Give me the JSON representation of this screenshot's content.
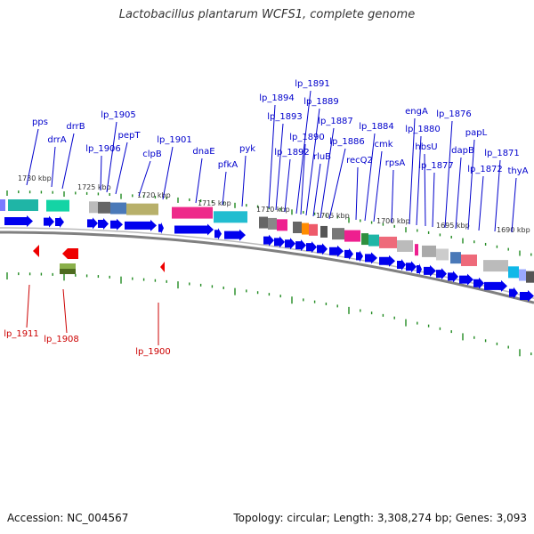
{
  "title": "Lactobacillus plantarum WCFS1, complete genome",
  "footer": {
    "accession": "Accession: NC_004567",
    "topology": "Topology: circular; Length: 3,308,274 bp; Genes: 3,093"
  },
  "colors": {
    "forward_gene": "#0000ee",
    "reverse_gene": "#ee0000",
    "forward_label": "#0000cc",
    "reverse_label": "#cc0000",
    "tick": "#228b22",
    "backbone": "#808080"
  },
  "scale_labels": [
    "1730 kbp",
    "1725 kbp",
    "1720 kbp",
    "1715 kbp",
    "1710 kbp",
    "1705 kbp",
    "1700 kbp",
    "1695 kbp",
    "1690 kbp"
  ],
  "forward_genes": [
    "pps",
    "drrA",
    "drrB",
    "lp_1906",
    "lp_1905",
    "pepT",
    "clpB",
    "lp_1901",
    "dnaE",
    "pfkA",
    "pyk",
    "lp_1894",
    "lp_1893",
    "lp_1892",
    "lp_1891",
    "lp_1890",
    "lp_1889",
    "rluB",
    "lp_1887",
    "lp_1886",
    "recQ2",
    "lp_1884",
    "cmk",
    "rpsA",
    "engA",
    "lp_1880",
    "hbsU",
    "lp_1877",
    "lp_1876",
    "dapB",
    "papL",
    "lp_1872",
    "lp_1871",
    "thyA"
  ],
  "reverse_genes": [
    "lp_1911",
    "lp_1908",
    "lp_1900"
  ]
}
